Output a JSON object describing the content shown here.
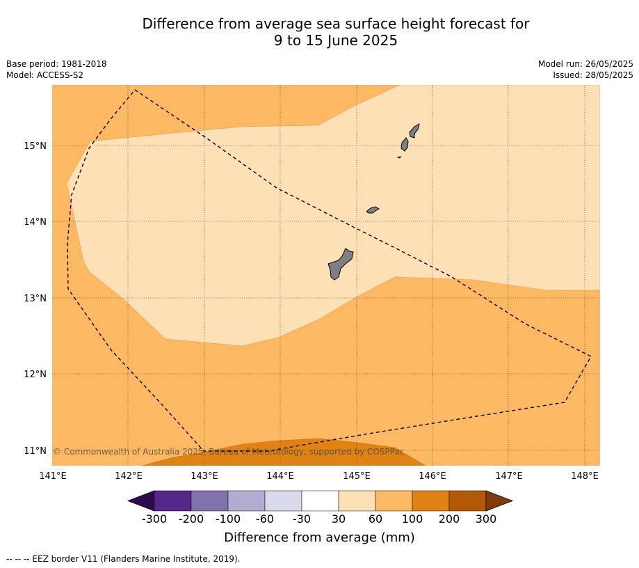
{
  "title_line1": "Difference from average sea surface height forecast for",
  "title_line2": "9 to 15 June 2025",
  "base_period": "Base period: 1981-2018",
  "model": "Model: ACCESS-S2",
  "model_run": "Model run: 26/05/2025",
  "issued": "Issued: 28/05/2025",
  "copyright": "© Commonwealth of Australia 2025, Bureau of Meteorology, supported by COSPPac",
  "lon_labels": [
    "141°E",
    "142°E",
    "143°E",
    "144°E",
    "145°E",
    "146°E",
    "147°E",
    "148°E"
  ],
  "lat_labels": [
    "15°N",
    "14°N",
    "13°N",
    "12°N",
    "11°N"
  ],
  "colorbar": {
    "title": "Difference from average (mm)",
    "tick_labels": [
      "-300",
      "-200",
      "-100",
      "-60",
      "-30",
      "30",
      "60",
      "100",
      "200",
      "300"
    ],
    "colors": [
      "#2d0a4e",
      "#542788",
      "#8073ac",
      "#b2abd2",
      "#d8daeb",
      "#ffffff",
      "#fee0b6",
      "#fdb863",
      "#e08214",
      "#b35806",
      "#7f3b08"
    ]
  },
  "legend_note": "--  --  -- EEZ border V11 (Flanders Marine Institute, 2019).",
  "map": {
    "land_color": "#808080",
    "contour_fill_colors": {
      "30-60": "#fee0b6",
      "60-100": "#fdb863",
      "100-200": "#e08214"
    }
  }
}
